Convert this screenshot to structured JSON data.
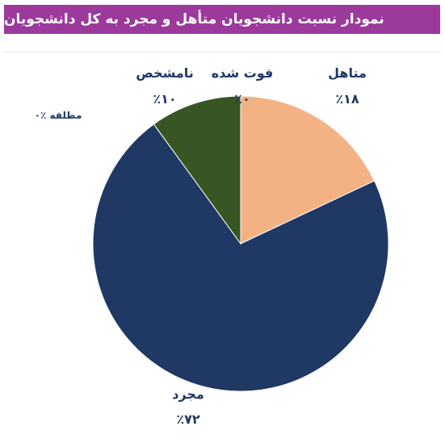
{
  "title": "نمودار نسبت دانشجویان متأهل و مجرد به کل دانشجویان",
  "colors": {
    "title_bg": "#9b3a9b",
    "label_text": "#1f3864"
  },
  "chart_data": {
    "type": "pie",
    "title": "نمودار نسبت دانشجویان متأهل و مجرد به کل دانشجویان",
    "slices": [
      {
        "label": "متاهل",
        "value": 18,
        "value_label": "٪۱۸",
        "color": "#f4b183"
      },
      {
        "label": "مجرد",
        "value": 72,
        "value_label": "٪۷۲",
        "color": "#1f3864"
      },
      {
        "label": "مطلقه",
        "value": 0,
        "value_label": "٪۰",
        "color": "#a5a5a5"
      },
      {
        "label": "نامشخص",
        "value": 10,
        "value_label": "٪۱۰",
        "color": "#375623"
      },
      {
        "label": "فوت شده",
        "value": 0,
        "value_label": "٪۰",
        "color": "#7f7f7f"
      }
    ],
    "start": "12 o'clock",
    "direction": "clockwise"
  }
}
